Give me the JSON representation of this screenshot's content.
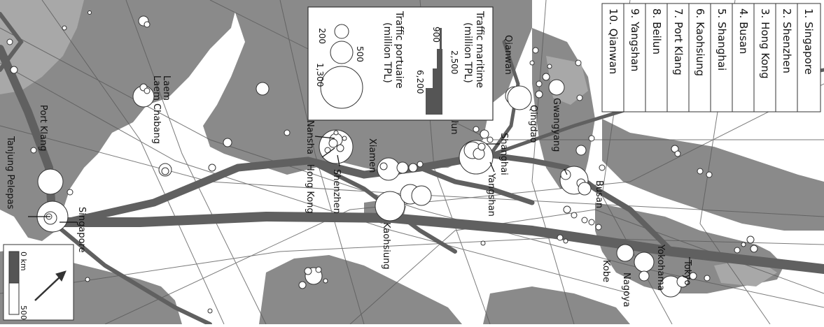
{
  "ranking_list": {
    "items": [
      {
        "label": "1. Singapore"
      },
      {
        "label": "2. Shenzhen"
      },
      {
        "label": "3. Hong Kong"
      },
      {
        "label": "4. Busan"
      },
      {
        "label": "5. Shanghai"
      },
      {
        "label": "6. Kaohsiung"
      },
      {
        "label": "7. Port Klang"
      },
      {
        "label": "8. Beilun"
      },
      {
        "label": "9. Yangshan"
      },
      {
        "label": "10. Qianwan"
      }
    ]
  },
  "legend": {
    "maritime_title_1": "Traffic maritime",
    "maritime_title_2": "(million TPL)",
    "maritime_values": [
      "900",
      "2,500",
      "6,200"
    ],
    "port_title_1": "Traffic portuaire",
    "port_title_2": "(million TPL)",
    "port_values": [
      "200",
      "500",
      "1,300"
    ]
  },
  "scale": {
    "zero": "0 km",
    "max": "500"
  },
  "port_labels": [
    "Port Klang",
    "Tanjung Pelepas",
    "Singapore",
    "Laem Chabang",
    "Nansha",
    "Hong Kong",
    "Shenzhen",
    "Xiamen",
    "Kaohsiung",
    "Beilun",
    "Shanghai",
    "Yangshan",
    "Qianwan",
    "Qingdao",
    "Gwangyang",
    "Busan",
    "Kobe",
    "Nagoya",
    "Yokohama",
    "Tokyo"
  ],
  "colors": {
    "sea": "#ffffff",
    "land": "#888888",
    "land_light": "#a9a9a9",
    "route": "#555555",
    "port_fill": "#ffffff",
    "port_stroke": "#333333"
  }
}
